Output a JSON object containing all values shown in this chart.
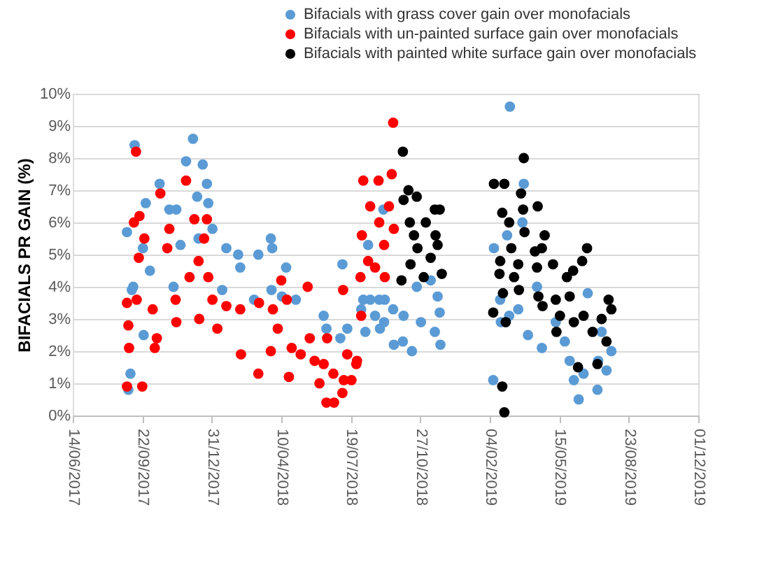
{
  "chart_data": {
    "type": "scatter",
    "ylabel": "BIFACIALS PR GAIN (%)",
    "legend": "top right",
    "grid": "y",
    "marker": "circle",
    "xlim": [
      "2017-06-14",
      "2019-12-01"
    ],
    "xticks": [
      {
        "value": "2017-06-14",
        "label": "14/06/2017"
      },
      {
        "value": "2017-09-22",
        "label": "22/09/2017"
      },
      {
        "value": "2017-12-31",
        "label": "31/12/2017"
      },
      {
        "value": "2018-04-10",
        "label": "10/04/2018"
      },
      {
        "value": "2018-07-19",
        "label": "19/07/2018"
      },
      {
        "value": "2018-10-27",
        "label": "27/10/2018"
      },
      {
        "value": "2019-02-04",
        "label": "04/02/2019"
      },
      {
        "value": "2019-05-15",
        "label": "15/05/2019"
      },
      {
        "value": "2019-08-23",
        "label": "23/08/2019"
      },
      {
        "value": "2019-12-01",
        "label": "01/12/2019"
      }
    ],
    "ylim": [
      0,
      10
    ],
    "yticks": [
      {
        "value": 0,
        "label": "0%"
      },
      {
        "value": 1,
        "label": "1%"
      },
      {
        "value": 2,
        "label": "2%"
      },
      {
        "value": 3,
        "label": "3%"
      },
      {
        "value": 4,
        "label": "4%"
      },
      {
        "value": 5,
        "label": "5%"
      },
      {
        "value": 6,
        "label": "6%"
      },
      {
        "value": 7,
        "label": "7%"
      },
      {
        "value": 8,
        "label": "8%"
      },
      {
        "value": 9,
        "label": "9%"
      },
      {
        "value": 10,
        "label": "10%"
      }
    ],
    "series": [
      {
        "name": "Bifacials with grass cover gain over monofacials",
        "color": "#5b9bd5",
        "x": [
          "2017-08-31",
          "2017-09-11",
          "2017-09-02",
          "2017-09-05",
          "2017-09-07",
          "2017-09-23",
          "2017-09-27",
          "2017-10-17",
          "2017-10-31",
          "2017-11-10",
          "2017-12-04",
          "2017-11-24",
          "2017-12-18",
          "2017-12-24",
          "2017-12-10",
          "2017-12-26",
          "2018-01-01",
          "2017-11-16",
          "2017-12-12",
          "2017-10-03",
          "2017-11-06",
          "2018-01-21",
          "2018-02-07",
          "2018-03-08",
          "2018-03-26",
          "2018-03-28",
          "2018-02-10",
          "2018-01-15",
          "2018-03-02",
          "2018-03-27",
          "2018-04-17",
          "2018-04-11",
          "2018-05-01",
          "2017-09-24",
          "2017-09-09",
          "2018-06-10",
          "2018-06-14",
          "2018-07-07",
          "2018-07-04",
          "2018-07-14",
          "2018-08-06",
          "2018-08-29",
          "2018-09-18",
          "2018-09-05",
          "2018-08-09",
          "2018-10-02",
          "2018-08-23",
          "2018-08-03",
          "2018-08-16",
          "2018-09-06",
          "2018-08-30",
          "2018-09-19",
          "2018-10-15",
          "2018-10-22",
          "2018-11-11",
          "2018-11-21",
          "2018-11-24",
          "2018-11-17",
          "2018-11-25",
          "2018-10-28",
          "2018-10-03",
          "2018-09-04",
          "2018-08-13",
          "2019-03-05",
          "2019-02-09",
          "2019-03-25",
          "2019-03-23",
          "2019-03-01",
          "2019-02-10",
          "2019-02-19",
          "2019-03-04",
          "2019-03-17",
          "2019-03-31",
          "2019-04-20",
          "2019-05-10",
          "2019-05-23",
          "2019-05-30",
          "2019-06-19",
          "2019-06-12",
          "2019-07-09",
          "2019-07-22",
          "2019-07-29",
          "2019-07-15",
          "2019-06-25",
          "2019-04-13",
          "2019-02-20",
          "2019-07-10",
          "2019-06-05"
        ],
        "values": [
          5.7,
          8.4,
          0.8,
          1.3,
          3.9,
          5.2,
          6.6,
          7.2,
          6.4,
          6.4,
          8.6,
          7.9,
          7.8,
          7.2,
          6.8,
          6.6,
          5.8,
          5.3,
          5.5,
          4.5,
          4.0,
          5.2,
          5.0,
          5.0,
          5.5,
          5.2,
          4.6,
          3.9,
          3.6,
          3.9,
          4.6,
          3.7,
          3.6,
          2.5,
          4.0,
          3.1,
          2.7,
          4.7,
          2.4,
          2.7,
          3.6,
          3.6,
          3.3,
          2.9,
          2.6,
          2.3,
          3.1,
          3.3,
          3.6,
          3.6,
          2.7,
          2.2,
          2.0,
          4.0,
          4.2,
          3.7,
          3.2,
          2.6,
          2.2,
          2.9,
          3.1,
          6.4,
          5.3,
          9.6,
          1.1,
          7.2,
          6.0,
          5.6,
          5.2,
          3.6,
          3.1,
          3.3,
          2.5,
          2.1,
          2.9,
          2.3,
          1.7,
          1.3,
          0.5,
          0.8,
          1.4,
          2.0,
          2.6,
          3.8,
          4.0,
          2.9,
          1.7,
          1.1
        ]
      },
      {
        "name": "Bifacials with un-painted surface gain over monofacials",
        "color": "#ff0000",
        "x": [
          "2017-09-13",
          "2017-11-24",
          "2017-10-18",
          "2017-12-06",
          "2017-12-24",
          "2017-09-10",
          "2017-09-18",
          "2017-10-31",
          "2017-09-25",
          "2017-12-20",
          "2017-09-17",
          "2017-10-28",
          "2017-12-12",
          "2017-08-31",
          "2017-09-14",
          "2017-10-07",
          "2017-11-09",
          "2017-11-29",
          "2017-12-26",
          "2018-01-01",
          "2018-01-21",
          "2017-12-13",
          "2017-11-10",
          "2017-10-13",
          "2017-10-10",
          "2017-09-02",
          "2017-09-03",
          "2017-08-31",
          "2017-09-22",
          "2018-01-08",
          "2018-02-10",
          "2018-03-09",
          "2018-03-29",
          "2018-04-18",
          "2018-05-18",
          "2018-04-10",
          "2018-02-11",
          "2018-03-08",
          "2018-03-26",
          "2018-04-05",
          "2018-04-25",
          "2018-04-21",
          "2018-05-08",
          "2018-05-21",
          "2018-05-28",
          "2018-06-04",
          "2018-06-14",
          "2018-06-10",
          "2018-06-24",
          "2018-07-07",
          "2018-07-14",
          "2018-07-20",
          "2018-07-08",
          "2018-07-27",
          "2018-06-15",
          "2018-08-03",
          "2018-08-06",
          "2018-08-28",
          "2018-09-18",
          "2018-09-16",
          "2018-08-16",
          "2018-08-04",
          "2018-08-13",
          "2018-08-02",
          "2018-08-29",
          "2018-09-05",
          "2018-09-12",
          "2018-09-19",
          "2018-09-06",
          "2018-08-23",
          "2018-07-28",
          "2018-07-09",
          "2018-06-25"
        ],
        "values": [
          8.2,
          7.3,
          6.9,
          6.1,
          6.1,
          6.0,
          6.2,
          5.8,
          5.5,
          5.5,
          4.9,
          5.2,
          4.8,
          3.5,
          3.6,
          3.3,
          3.6,
          4.3,
          4.3,
          3.6,
          3.4,
          3.0,
          2.9,
          2.4,
          2.1,
          2.8,
          2.1,
          0.9,
          0.9,
          2.7,
          3.3,
          3.5,
          3.3,
          3.6,
          4.0,
          4.2,
          1.9,
          1.3,
          2.0,
          2.7,
          2.1,
          1.2,
          1.9,
          2.4,
          1.7,
          1.0,
          0.4,
          1.6,
          1.3,
          0.7,
          1.9,
          1.1,
          3.9,
          1.6,
          2.4,
          3.1,
          7.3,
          7.3,
          9.1,
          7.5,
          6.5,
          5.6,
          4.8,
          4.3,
          6.0,
          5.3,
          6.5,
          5.8,
          4.3,
          4.6,
          1.7,
          1.1,
          0.4
        ]
      },
      {
        "name": "Bifacials with painted white surface gain over monofacials",
        "color": "#000000",
        "x": [
          "2018-10-02",
          "2018-10-10",
          "2018-10-22",
          "2018-10-03",
          "2018-11-17",
          "2018-11-24",
          "2018-10-12",
          "2018-11-04",
          "2018-11-18",
          "2018-10-23",
          "2018-11-11",
          "2018-10-13",
          "2018-11-27",
          "2018-11-01",
          "2018-09-30",
          "2018-11-21",
          "2018-10-18",
          "2019-02-10",
          "2019-02-25",
          "2019-03-25",
          "2019-03-21",
          "2019-03-24",
          "2019-04-14",
          "2019-02-22",
          "2019-03-04",
          "2019-03-26",
          "2019-04-24",
          "2019-03-07",
          "2019-04-10",
          "2019-04-20",
          "2019-02-19",
          "2019-03-17",
          "2019-04-13",
          "2019-02-18",
          "2019-03-11",
          "2019-02-23",
          "2019-03-18",
          "2019-04-15",
          "2019-05-06",
          "2019-05-26",
          "2019-06-04",
          "2019-06-24",
          "2019-06-17",
          "2019-04-21",
          "2019-05-10",
          "2019-05-16",
          "2019-05-30",
          "2019-06-05",
          "2019-06-19",
          "2019-07-02",
          "2019-07-15",
          "2019-07-25",
          "2019-07-29",
          "2019-07-22",
          "2019-07-09",
          "2019-06-11",
          "2019-05-11",
          "2019-02-09",
          "2019-02-27",
          "2019-02-22",
          "2019-02-25"
        ],
        "values": [
          8.2,
          7.0,
          6.8,
          6.7,
          6.4,
          6.4,
          6.0,
          6.0,
          5.6,
          5.2,
          4.9,
          4.7,
          4.4,
          4.3,
          4.2,
          5.3,
          5.6,
          7.2,
          7.2,
          8.0,
          6.9,
          6.4,
          6.5,
          6.3,
          6.0,
          5.7,
          5.6,
          5.2,
          5.1,
          5.2,
          4.8,
          4.7,
          4.6,
          4.4,
          4.3,
          3.8,
          3.9,
          3.7,
          4.7,
          4.3,
          4.5,
          5.2,
          4.8,
          3.4,
          3.6,
          3.1,
          3.7,
          2.9,
          3.1,
          2.6,
          3.0,
          3.6,
          3.3,
          2.3,
          1.6,
          1.5,
          2.6,
          3.2,
          2.9,
          0.9,
          0.1
        ]
      }
    ]
  }
}
